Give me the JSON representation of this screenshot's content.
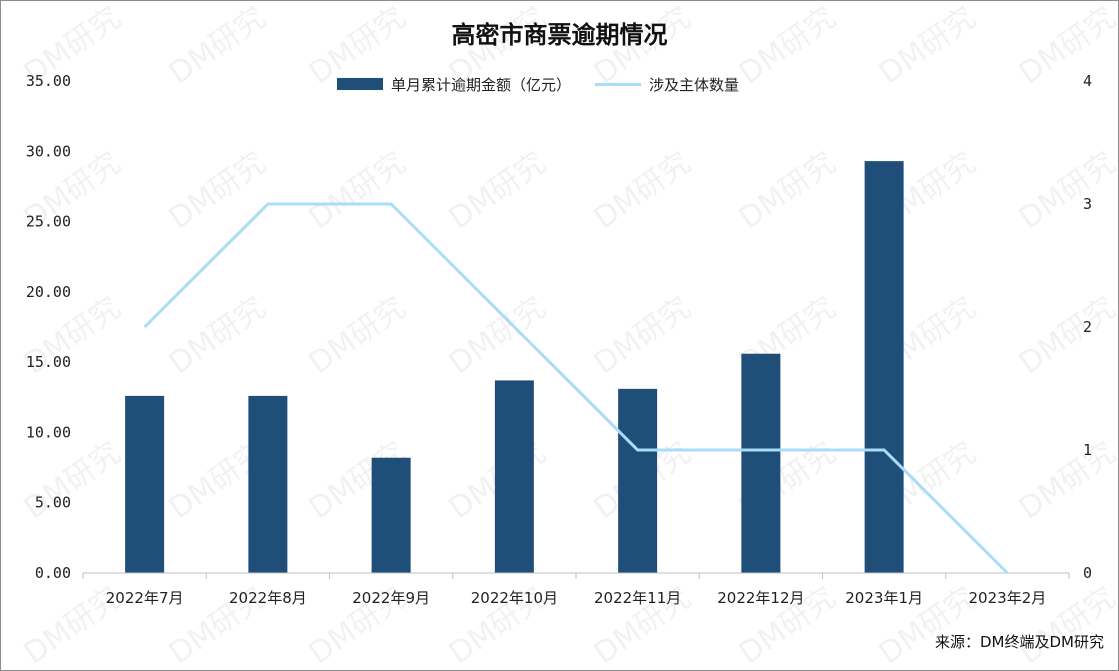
{
  "title": "高密市商票逾期情况",
  "source": "来源：DM终端及DM研究",
  "watermark": "DM研究",
  "legend": {
    "bar_label": "单月累计逾期金额（亿元）",
    "line_label": "涉及主体数量"
  },
  "colors": {
    "bar": "#1f4e79",
    "line": "#a9dcf7"
  },
  "chart_data": {
    "type": "bar",
    "categories": [
      "2022年7月",
      "2022年8月",
      "2022年9月",
      "2022年10月",
      "2022年11月",
      "2022年12月",
      "2023年1月",
      "2023年2月"
    ],
    "series": [
      {
        "name": "单月累计逾期金额（亿元）",
        "type": "bar",
        "axis": "left",
        "values": [
          12.6,
          12.6,
          8.2,
          13.7,
          13.1,
          15.6,
          29.3,
          0
        ]
      },
      {
        "name": "涉及主体数量",
        "type": "line",
        "axis": "right",
        "values": [
          2,
          3,
          3,
          2,
          1,
          1,
          1,
          0
        ]
      }
    ],
    "y_left": {
      "ylim": [
        0,
        35
      ],
      "ticks": [
        "0.00",
        "5.00",
        "10.00",
        "15.00",
        "20.00",
        "25.00",
        "30.00",
        "35.00"
      ]
    },
    "y_right": {
      "ylim": [
        0,
        4
      ],
      "ticks": [
        "0",
        "1",
        "2",
        "3",
        "4"
      ]
    },
    "grid": false,
    "legend_position": "top"
  }
}
